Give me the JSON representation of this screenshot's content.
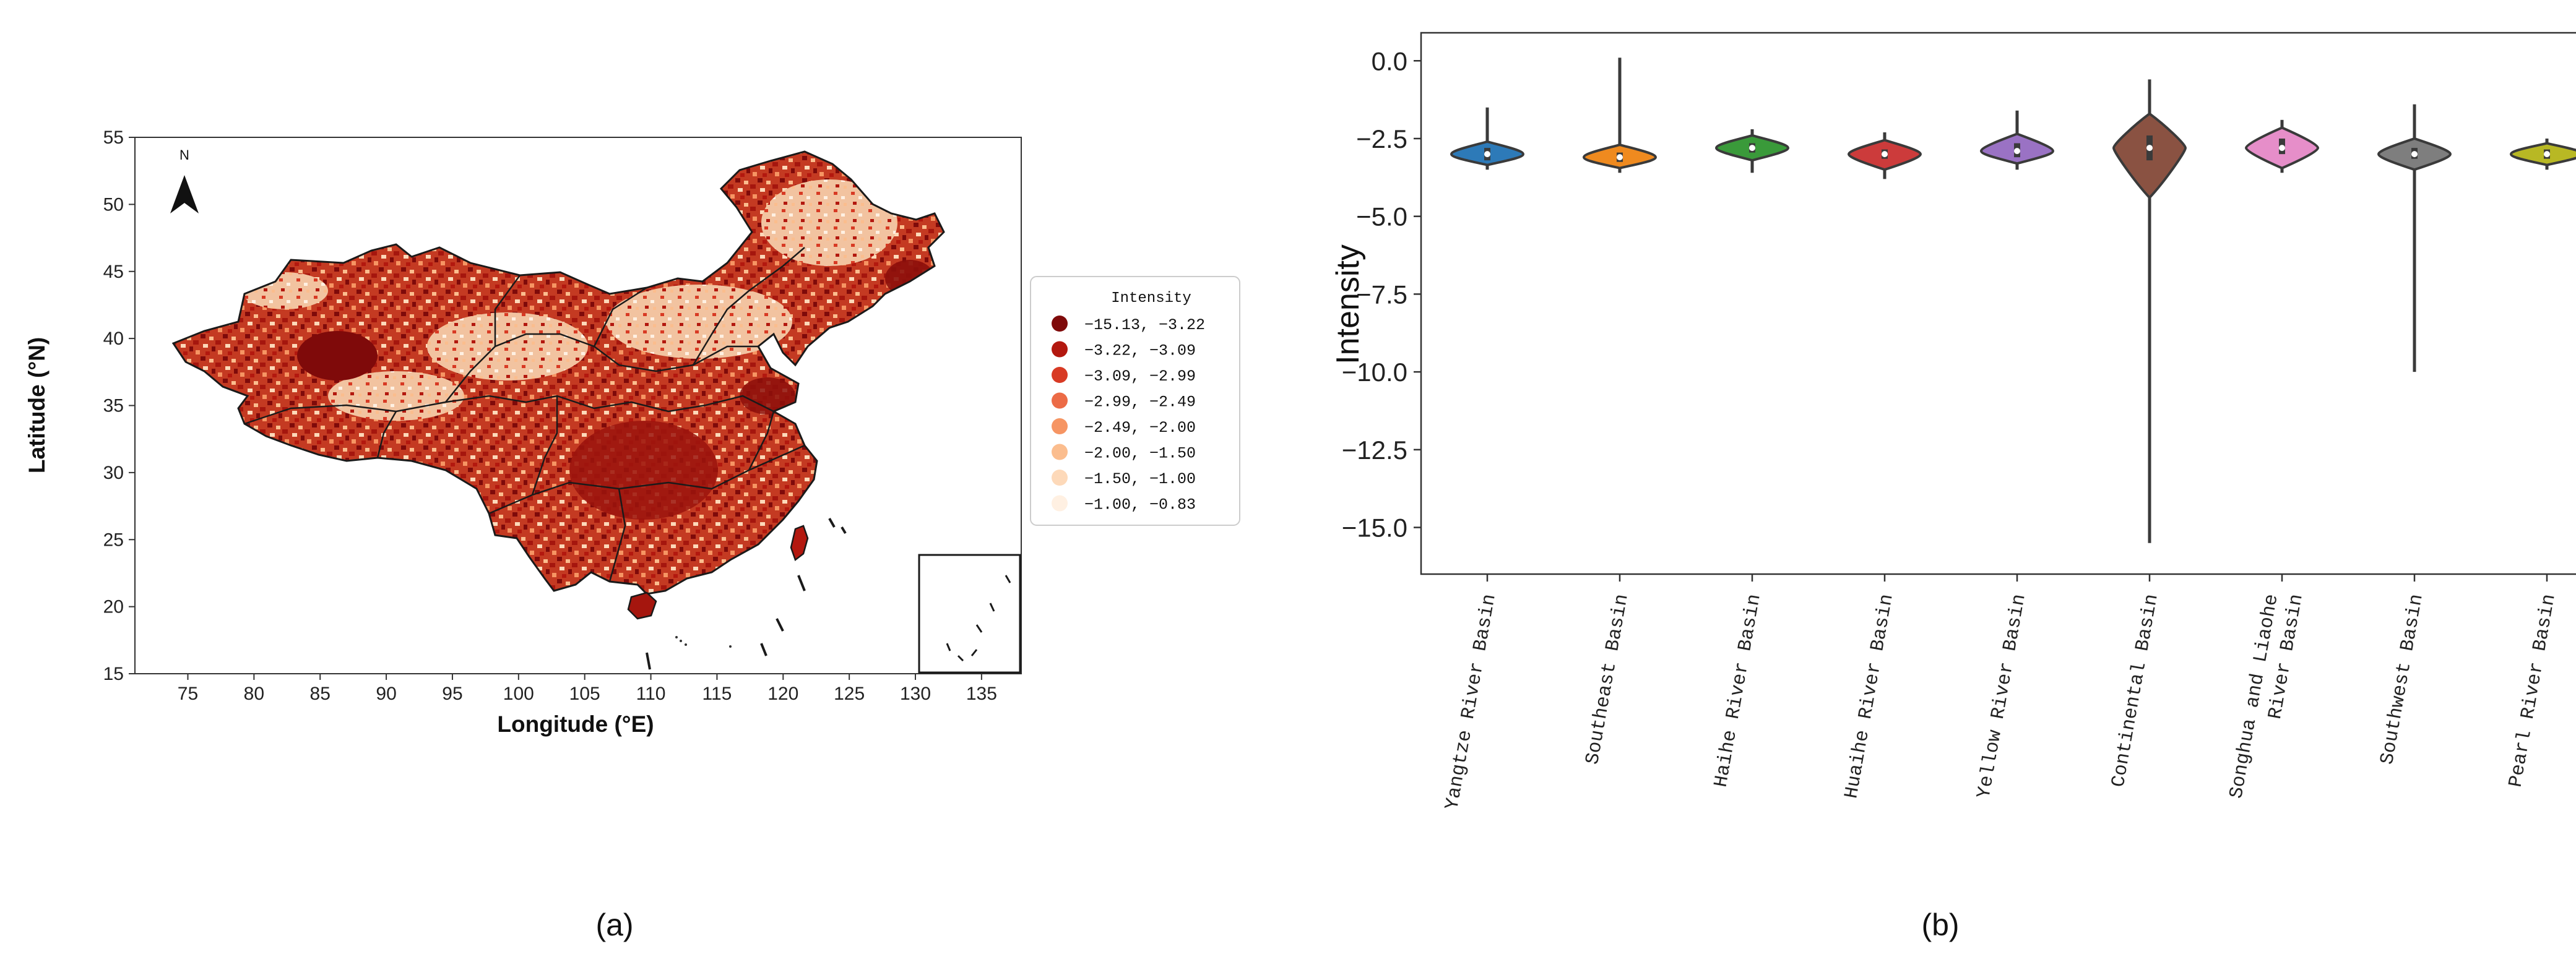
{
  "panel_labels": [
    "(a)",
    "(b)"
  ],
  "chart_data": [
    {
      "type": "heatmap",
      "subtype": "map",
      "title": "",
      "xlabel": "Longitude (°E)",
      "ylabel": "Latitude (°N)",
      "xlim": [
        71,
        138
      ],
      "ylim": [
        15,
        55
      ],
      "x_ticks": [
        75,
        80,
        85,
        90,
        95,
        100,
        105,
        110,
        115,
        120,
        125,
        130,
        135
      ],
      "y_ticks": [
        15,
        20,
        25,
        30,
        35,
        40,
        45,
        50,
        55
      ],
      "north_arrow_label": "N",
      "legend": {
        "title": "Intensity",
        "entries": [
          {
            "label": "−15.13,   −3.22",
            "color": "#7f0a0a"
          },
          {
            "label": "−3.22,   −3.09",
            "color": "#b3180f"
          },
          {
            "label": "−3.09,   −2.99",
            "color": "#d83a24"
          },
          {
            "label": "−2.99,   −2.49",
            "color": "#ec6b46"
          },
          {
            "label": "−2.49,   −2.00",
            "color": "#f69563"
          },
          {
            "label": "−2.00,   −1.50",
            "color": "#fbbd8e"
          },
          {
            "label": "−1.50,   −1.00",
            "color": "#fdd9b9"
          },
          {
            "label": "−1.00,   −0.83",
            "color": "#fff0e2"
          }
        ]
      }
    },
    {
      "type": "violin",
      "title": "",
      "xlabel": "",
      "ylabel": "Intensity",
      "ylim": [
        -16.5,
        0.9
      ],
      "y_ticks": [
        0.0,
        -2.5,
        -5.0,
        -7.5,
        -10.0,
        -12.5,
        -15.0
      ],
      "y_tick_labels": [
        "0.0",
        "−2.5",
        "−5.0",
        "−7.5",
        "−10.0",
        "−12.5",
        "−15.0"
      ],
      "categories": [
        "Yangtze River Basin",
        "Southeast Basin",
        "Haihe River Basin",
        "Huaihe River Basin",
        "Yellow River Basin",
        "Continental Basin",
        "Songhua and Liaohe\nRiver Basin",
        "Southwest Basin",
        "Pearl River Basin"
      ],
      "category_lines": [
        [
          "Yangtze River Basin"
        ],
        [
          "Southeast Basin"
        ],
        [
          "Haihe River Basin"
        ],
        [
          "Huaihe River Basin"
        ],
        [
          "Yellow River Basin"
        ],
        [
          "Continental Basin"
        ],
        [
          "Songhua and Liaohe",
          "River Basin"
        ],
        [
          "Southwest Basin"
        ],
        [
          "Pearl River Basin"
        ]
      ],
      "series": [
        {
          "name": "Yangtze River Basin",
          "color": "#2d7ab8",
          "min": -3.5,
          "max": -1.5,
          "median": -3.0,
          "q1": -3.2,
          "q3": -2.8,
          "body_low": -3.35,
          "body_high": -2.6
        },
        {
          "name": "Southeast Basin",
          "color": "#ef8a1f",
          "min": -3.6,
          "max": 0.1,
          "median": -3.1,
          "q1": -3.25,
          "q3": -2.95,
          "body_low": -3.45,
          "body_high": -2.7
        },
        {
          "name": "Haihe River Basin",
          "color": "#3a9a3a",
          "min": -3.6,
          "max": -2.2,
          "median": -2.8,
          "q1": -2.95,
          "q3": -2.65,
          "body_low": -3.2,
          "body_high": -2.4
        },
        {
          "name": "Huaihe River Basin",
          "color": "#cc3b3b",
          "min": -3.8,
          "max": -2.3,
          "median": -3.0,
          "q1": -3.15,
          "q3": -2.85,
          "body_low": -3.5,
          "body_high": -2.55
        },
        {
          "name": "Yellow River Basin",
          "color": "#9a72c4",
          "min": -3.5,
          "max": -1.6,
          "median": -2.9,
          "q1": -3.1,
          "q3": -2.65,
          "body_low": -3.3,
          "body_high": -2.35
        },
        {
          "name": "Continental Basin",
          "color": "#8a5242",
          "min": -15.5,
          "max": -0.6,
          "median": -2.8,
          "q1": -3.2,
          "q3": -2.4,
          "body_low": -4.4,
          "body_high": -1.7
        },
        {
          "name": "Songhua and Liaohe River Basin",
          "color": "#e68ec9",
          "min": -3.6,
          "max": -1.9,
          "median": -2.8,
          "q1": -3.0,
          "q3": -2.5,
          "body_low": -3.45,
          "body_high": -2.15
        },
        {
          "name": "Southwest Basin",
          "color": "#7e7e7e",
          "min": -10.0,
          "max": -1.4,
          "median": -3.0,
          "q1": -3.15,
          "q3": -2.8,
          "body_low": -3.5,
          "body_high": -2.5
        },
        {
          "name": "Pearl River Basin",
          "color": "#b8b824",
          "min": -3.5,
          "max": -2.5,
          "median": -3.0,
          "q1": -3.15,
          "q3": -2.85,
          "body_low": -3.35,
          "body_high": -2.65
        }
      ]
    }
  ]
}
